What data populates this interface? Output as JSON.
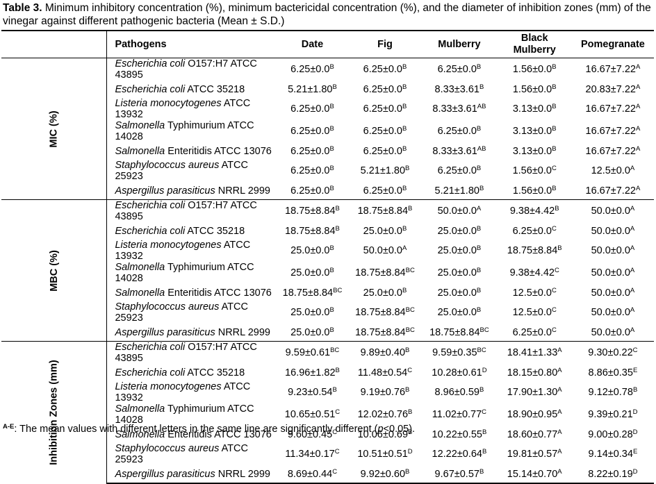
{
  "caption": {
    "label": "Table 3.",
    "text": " Minimum inhibitory concentration (%), minimum bactericidal concentration (%), and the diameter of inhibition zones (mm) of the vinegar against different pathogenic bacteria (Mean ± S.D.)"
  },
  "headers": {
    "pathogens": "Pathogens",
    "date": "Date",
    "fig": "Fig",
    "mulberry": "Mulberry",
    "black_mulberry_1": "Black",
    "black_mulberry_2": "Mulberry",
    "pomegranate": "Pomegranate"
  },
  "groups": [
    {
      "label": "MIC (%)",
      "rows": [
        {
          "genus": "Escherichia coli",
          "rest": " O157:H7 ATCC 43895",
          "v": [
            [
              "6.25±0.0",
              "B"
            ],
            [
              "6.25±0.0",
              "B"
            ],
            [
              "6.25±0.0",
              "B"
            ],
            [
              "1.56±0.0",
              "B"
            ],
            [
              "16.67±7.22",
              "A"
            ]
          ]
        },
        {
          "genus": "Escherichia coli",
          "rest": " ATCC 35218",
          "v": [
            [
              "5.21±1.80",
              "B"
            ],
            [
              "6.25±0.0",
              "B"
            ],
            [
              "8.33±3.61",
              "B"
            ],
            [
              "1.56±0.0",
              "B"
            ],
            [
              "20.83±7.22",
              "A"
            ]
          ]
        },
        {
          "genus": "Listeria monocytogenes",
          "rest": " ATCC 13932",
          "v": [
            [
              "6.25±0.0",
              "B"
            ],
            [
              "6.25±0.0",
              "B"
            ],
            [
              "8.33±3.61",
              "AB"
            ],
            [
              "3.13±0.0",
              "B"
            ],
            [
              "16.67±7.22",
              "A"
            ]
          ]
        },
        {
          "genus": "Salmonella",
          "rest": " Typhimurium ATCC 14028",
          "v": [
            [
              "6.25±0.0",
              "B"
            ],
            [
              "6.25±0.0",
              "B"
            ],
            [
              "6.25±0.0",
              "B"
            ],
            [
              "3.13±0.0",
              "B"
            ],
            [
              "16.67±7.22",
              "A"
            ]
          ]
        },
        {
          "genus": "Salmonella",
          "rest": " Enteritidis ATCC 13076",
          "v": [
            [
              "6.25±0.0",
              "B"
            ],
            [
              "6.25±0.0",
              "B"
            ],
            [
              "8.33±3.61",
              "AB"
            ],
            [
              "3.13±0.0",
              "B"
            ],
            [
              "16.67±7.22",
              "A"
            ]
          ]
        },
        {
          "genus": "Staphylococcus aureus",
          "rest": " ATCC 25923",
          "v": [
            [
              "6.25±0.0",
              "B"
            ],
            [
              "5.21±1.80",
              "B"
            ],
            [
              "6.25±0.0",
              "B"
            ],
            [
              "1.56±0.0",
              "C"
            ],
            [
              "12.5±0.0",
              "A"
            ]
          ]
        },
        {
          "genus": "Aspergillus parasiticus",
          "rest": " NRRL 2999",
          "v": [
            [
              "6.25±0.0",
              "B"
            ],
            [
              "6.25±0.0",
              "B"
            ],
            [
              "5.21±1.80",
              "B"
            ],
            [
              "1.56±0.0",
              "B"
            ],
            [
              "16.67±7.22",
              "A"
            ]
          ]
        }
      ]
    },
    {
      "label": "MBC (%)",
      "rows": [
        {
          "genus": "Escherichia coli",
          "rest": " O157:H7 ATCC 43895",
          "v": [
            [
              "18.75±8.84",
              "B"
            ],
            [
              "18.75±8.84",
              "B"
            ],
            [
              "50.0±0.0",
              "A"
            ],
            [
              "9.38±4.42",
              "B"
            ],
            [
              "50.0±0.0",
              "A"
            ]
          ]
        },
        {
          "genus": "Escherichia coli",
          "rest": " ATCC 35218",
          "v": [
            [
              "18.75±8.84",
              "B"
            ],
            [
              "25.0±0.0",
              "B"
            ],
            [
              "25.0±0.0",
              "B"
            ],
            [
              "6.25±0.0",
              "C"
            ],
            [
              "50.0±0.0",
              "A"
            ]
          ]
        },
        {
          "genus": "Listeria monocytogenes",
          "rest": " ATCC 13932",
          "v": [
            [
              "25.0±0.0",
              "B"
            ],
            [
              "50.0±0.0",
              "A"
            ],
            [
              "25.0±0.0",
              "B"
            ],
            [
              "18.75±8.84",
              "B"
            ],
            [
              "50.0±0.0",
              "A"
            ]
          ]
        },
        {
          "genus": "Salmonella",
          "rest": " Typhimurium ATCC 14028",
          "v": [
            [
              "25.0±0.0",
              "B"
            ],
            [
              "18.75±8.84",
              "BC"
            ],
            [
              "25.0±0.0",
              "B"
            ],
            [
              "9.38±4.42",
              "C"
            ],
            [
              "50.0±0.0",
              "A"
            ]
          ]
        },
        {
          "genus": "Salmonella",
          "rest": " Enteritidis ATCC 13076",
          "v": [
            [
              "18.75±8.84",
              "BC"
            ],
            [
              "25.0±0.0",
              "B"
            ],
            [
              "25.0±0.0",
              "B"
            ],
            [
              "12.5±0.0",
              "C"
            ],
            [
              "50.0±0.0",
              "A"
            ]
          ]
        },
        {
          "genus": "Staphylococcus aureus",
          "rest": " ATCC 25923",
          "v": [
            [
              "25.0±0.0",
              "B"
            ],
            [
              "18.75±8.84",
              "BC"
            ],
            [
              "25.0±0.0",
              "B"
            ],
            [
              "12.5±0.0",
              "C"
            ],
            [
              "50.0±0.0",
              "A"
            ]
          ]
        },
        {
          "genus": "Aspergillus parasiticus",
          "rest": " NRRL 2999",
          "v": [
            [
              "25.0±0.0",
              "B"
            ],
            [
              "18.75±8.84",
              "BC"
            ],
            [
              "18.75±8.84",
              "BC"
            ],
            [
              "6.25±0.0",
              "C"
            ],
            [
              "50.0±0.0",
              "A"
            ]
          ]
        }
      ]
    },
    {
      "label": "Inhibition Zones (mm)",
      "rows": [
        {
          "genus": "Escherichia coli",
          "rest": " O157:H7 ATCC 43895",
          "v": [
            [
              "9.59±0.61",
              "BC"
            ],
            [
              "9.89±0.40",
              "B"
            ],
            [
              "9.59±0.35",
              "BC"
            ],
            [
              "18.41±1.33",
              "A"
            ],
            [
              "9.30±0.22",
              "C"
            ]
          ]
        },
        {
          "genus": "Escherichia coli",
          "rest": " ATCC 35218",
          "v": [
            [
              "16.96±1.82",
              "B"
            ],
            [
              "11.48±0.54",
              "C"
            ],
            [
              "10.28±0.61",
              "D"
            ],
            [
              "18.15±0.80",
              "A"
            ],
            [
              "8.86±0.35",
              "E"
            ]
          ]
        },
        {
          "genus": "Listeria monocytogenes",
          "rest": " ATCC 13932",
          "v": [
            [
              "9.23±0.54",
              "B"
            ],
            [
              "9.19±0.76",
              "B"
            ],
            [
              "8.96±0.59",
              "B"
            ],
            [
              "17.90±1.30",
              "A"
            ],
            [
              "9.12±0.78",
              "B"
            ]
          ]
        },
        {
          "genus": "Salmonella",
          "rest": " Typhimurium ATCC 14028",
          "v": [
            [
              "10.65±0.51",
              "C"
            ],
            [
              "12.02±0.76",
              "B"
            ],
            [
              "11.02±0.77",
              "C"
            ],
            [
              "18.90±0.95",
              "A"
            ],
            [
              "9.39±0.21",
              "D"
            ]
          ]
        },
        {
          "genus": "Salmonella",
          "rest": " Enteritidis ATCC 13076",
          "v": [
            [
              "9.60±0.45",
              "C"
            ],
            [
              "10.06±0.69",
              "B"
            ],
            [
              "10.22±0.55",
              "B"
            ],
            [
              "18.60±0.77",
              "A"
            ],
            [
              "9.00±0.28",
              "D"
            ]
          ]
        },
        {
          "genus": "Staphylococcus aureus",
          "rest": " ATCC 25923",
          "v": [
            [
              "11.34±0.17",
              "C"
            ],
            [
              "10.51±0.51",
              "D"
            ],
            [
              "12.22±0.64",
              "B"
            ],
            [
              "19.81±0.57",
              "A"
            ],
            [
              "9.14±0.34",
              "E"
            ]
          ]
        },
        {
          "genus": "Aspergillus parasiticus",
          "rest": " NRRL 2999",
          "v": [
            [
              "8.69±0.44",
              "C"
            ],
            [
              "9.92±0.60",
              "B"
            ],
            [
              "9.67±0.57",
              "B"
            ],
            [
              "15.14±0.70",
              "A"
            ],
            [
              "8.22±0.19",
              "D"
            ]
          ]
        }
      ]
    }
  ],
  "footnote": {
    "sup": "A-E",
    "text_before": ": The mean values with different letters in the same line are significantly different (",
    "p": "p",
    "text_after": "<0.05)."
  }
}
